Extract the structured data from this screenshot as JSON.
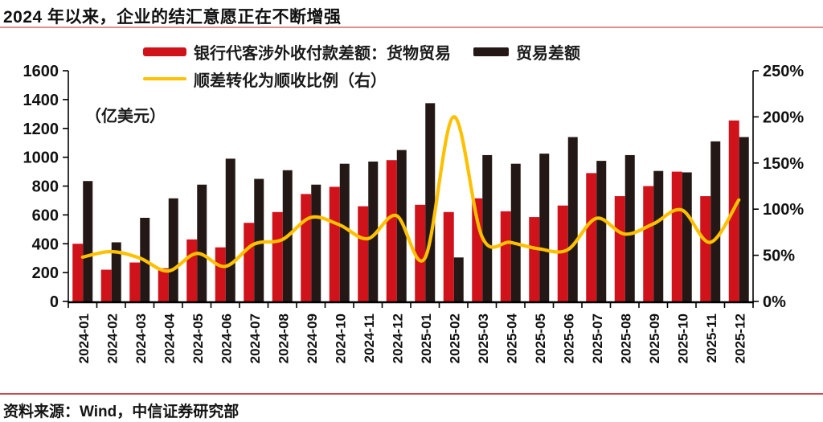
{
  "title": "2024 年以来，企业的结汇意愿正在不断增强",
  "footer": {
    "source": "资料来源：Wind，中信证券研究部"
  },
  "colors": {
    "bar_red": "#d0121b",
    "bar_black": "#231815",
    "line_yellow": "#ffc000",
    "title_rule": "#dd8f8f",
    "footer_rule": "#cb4c4c",
    "axis": "#000000"
  },
  "chart_data": {
    "type": "bar",
    "subtype": "grouped-bars-with-line",
    "title": "2024 年以来，企业的结汇意愿正在不断增强",
    "unit_label": "（亿美元）",
    "grid": false,
    "legend_position": "top",
    "categories": [
      "2024-01",
      "2024-02",
      "2024-03",
      "2024-04",
      "2024-05",
      "2024-06",
      "2024-07",
      "2024-08",
      "2024-09",
      "2024-10",
      "2024-11",
      "2024-12",
      "2025-01",
      "2025-02",
      "2025-03",
      "2025-04",
      "2025-05",
      "2025-06",
      "2025-07",
      "2025-08",
      "2025-09",
      "2025-10",
      "2025-11",
      "2025-12"
    ],
    "series": [
      {
        "name": "银行代客涉外收付款差额：货物贸易",
        "type": "bar",
        "axis": "left",
        "color": "#d0121b",
        "values": [
          400,
          220,
          270,
          230,
          430,
          375,
          545,
          620,
          745,
          795,
          660,
          980,
          670,
          620,
          715,
          625,
          585,
          665,
          890,
          730,
          800,
          900,
          730,
          1255
        ]
      },
      {
        "name": "贸易差额",
        "type": "bar",
        "axis": "left",
        "color": "#231815",
        "values": [
          835,
          410,
          580,
          715,
          810,
          990,
          850,
          910,
          810,
          955,
          970,
          1050,
          1375,
          305,
          1015,
          955,
          1025,
          1140,
          975,
          1015,
          905,
          895,
          1110,
          1140
        ]
      },
      {
        "name": "顺差转化为顺收比例（右）",
        "type": "line",
        "axis": "right",
        "color": "#ffc000",
        "values": [
          48,
          54,
          47,
          33,
          52,
          38,
          62,
          67,
          91,
          83,
          68,
          93,
          47,
          200,
          70,
          64,
          57,
          56,
          90,
          73,
          84,
          99,
          64,
          110
        ]
      }
    ],
    "left_axis": {
      "min": 0,
      "max": 1600,
      "step": 200,
      "suffix": ""
    },
    "right_axis": {
      "min": 0,
      "max": 250,
      "step": 50,
      "suffix": "%"
    }
  }
}
